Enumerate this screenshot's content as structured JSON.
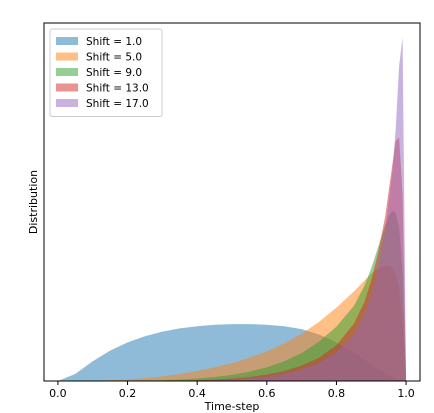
{
  "chart_data": {
    "type": "area",
    "title": "",
    "xlabel": "Time-step",
    "ylabel": "Distribution",
    "xlim": [
      -0.04,
      1.04
    ],
    "ylim": [
      0,
      1.0
    ],
    "x_ticks": [
      "0.0",
      "0.2",
      "0.4",
      "0.6",
      "0.8",
      "1.0"
    ],
    "y_ticks": [],
    "grid": false,
    "legend_position": "top-left",
    "x": [
      0.0,
      0.05,
      0.1,
      0.15,
      0.2,
      0.25,
      0.3,
      0.35,
      0.4,
      0.45,
      0.5,
      0.55,
      0.6,
      0.65,
      0.7,
      0.75,
      0.8,
      0.85,
      0.88,
      0.9,
      0.92,
      0.94,
      0.95,
      0.96,
      0.97,
      0.98,
      0.99,
      1.0
    ],
    "series": [
      {
        "name": "Shift = 1.0",
        "color": "#1f77b4",
        "values": [
          0.0,
          0.02,
          0.055,
          0.085,
          0.108,
          0.125,
          0.138,
          0.147,
          0.153,
          0.157,
          0.159,
          0.159,
          0.157,
          0.153,
          0.145,
          0.13,
          0.108,
          0.08,
          0.06,
          0.047,
          0.034,
          0.022,
          0.016,
          0.011,
          0.006,
          0.003,
          0.001,
          0.0
        ]
      },
      {
        "name": "Shift = 5.0",
        "color": "#ff7f0e",
        "values": [
          0.0,
          0.0,
          0.001,
          0.002,
          0.004,
          0.008,
          0.013,
          0.02,
          0.028,
          0.038,
          0.05,
          0.065,
          0.083,
          0.105,
          0.132,
          0.165,
          0.205,
          0.25,
          0.28,
          0.3,
          0.315,
          0.322,
          0.322,
          0.316,
          0.3,
          0.26,
          0.17,
          0.0
        ]
      },
      {
        "name": "Shift = 9.0",
        "color": "#2ca02c",
        "values": [
          0.0,
          0.0,
          0.0,
          0.0,
          0.0,
          0.001,
          0.002,
          0.004,
          0.007,
          0.011,
          0.017,
          0.026,
          0.038,
          0.055,
          0.078,
          0.11,
          0.152,
          0.21,
          0.265,
          0.315,
          0.375,
          0.435,
          0.46,
          0.475,
          0.47,
          0.43,
          0.3,
          0.0
        ]
      },
      {
        "name": "Shift = 13.0",
        "color": "#d62728",
        "values": [
          0.0,
          0.0,
          0.0,
          0.0,
          0.0,
          0.0,
          0.0,
          0.001,
          0.002,
          0.004,
          0.007,
          0.011,
          0.018,
          0.028,
          0.043,
          0.065,
          0.1,
          0.16,
          0.22,
          0.28,
          0.36,
          0.46,
          0.53,
          0.6,
          0.67,
          0.68,
          0.52,
          0.0
        ]
      },
      {
        "name": "Shift = 17.0",
        "color": "#9467bd",
        "values": [
          0.0,
          0.0,
          0.0,
          0.0,
          0.0,
          0.0,
          0.0,
          0.0,
          0.001,
          0.002,
          0.004,
          0.007,
          0.012,
          0.02,
          0.032,
          0.05,
          0.08,
          0.13,
          0.19,
          0.24,
          0.32,
          0.42,
          0.5,
          0.58,
          0.7,
          0.88,
          0.96,
          0.0
        ]
      }
    ]
  }
}
